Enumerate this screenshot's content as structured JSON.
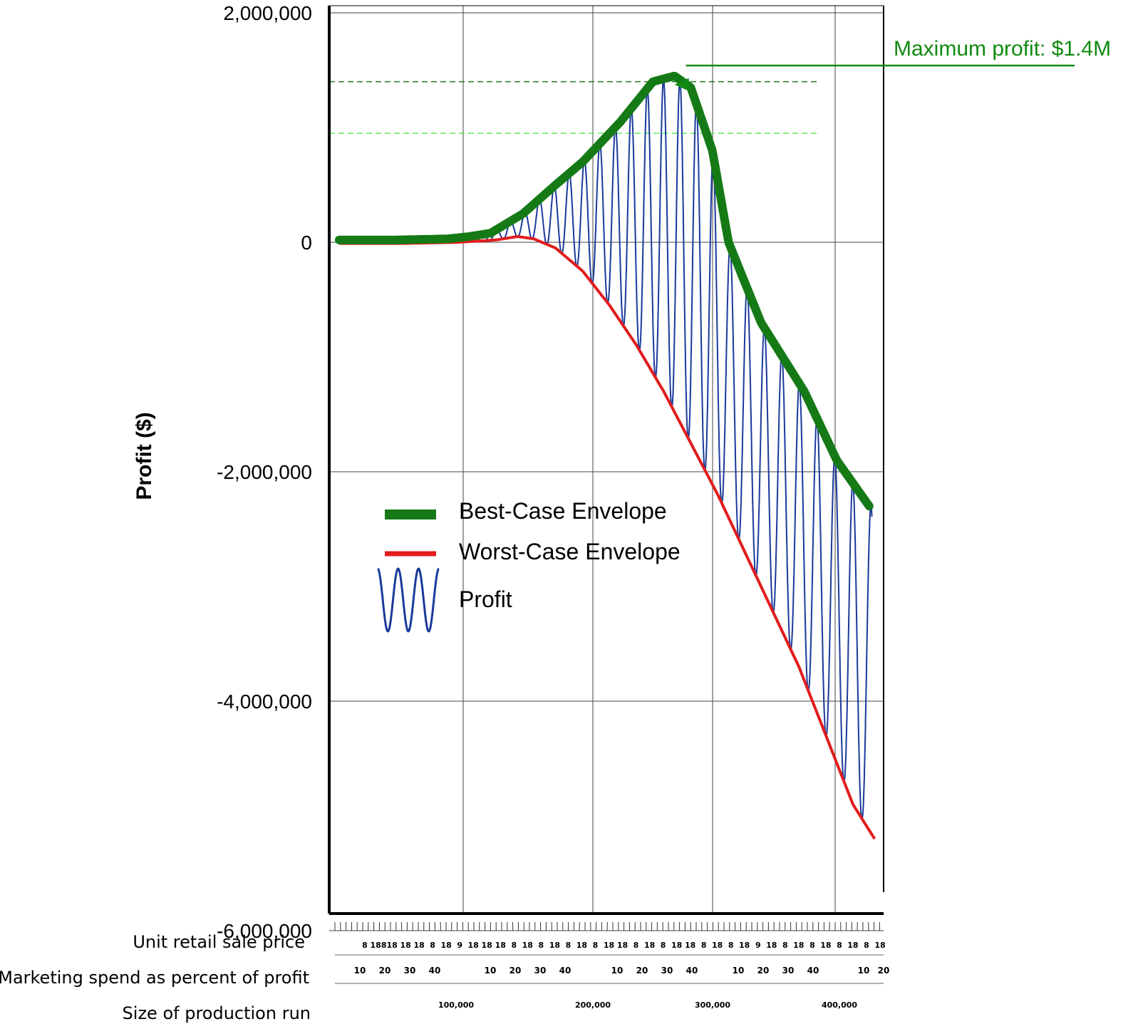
{
  "chart_data": {
    "type": "line",
    "title": "",
    "ylabel": "Profit ($)",
    "ylim": [
      -6200000,
      2000000
    ],
    "yticks": [
      2000000,
      0,
      -2000000,
      -4000000,
      -6000000
    ],
    "ytick_labels": [
      "2,000,000",
      "0",
      "-2,000,000",
      "-4,000,000",
      "-6,000,000"
    ],
    "x_rows": [
      {
        "label": "Unit retail sale price",
        "tick_labels": [
          "8",
          "188",
          "18",
          "18",
          "18",
          "8",
          "18",
          "9",
          "18",
          "18",
          "18",
          "8",
          "18",
          "8",
          "18",
          "8",
          "18",
          "8",
          "18",
          "18",
          "8",
          "18",
          "8",
          "18",
          "18",
          "8",
          "18",
          "8",
          "18",
          "9",
          "18",
          "8",
          "18",
          "8",
          "18",
          "8",
          "18",
          "8",
          "18"
        ]
      },
      {
        "label": "Marketing spend as percent of profit",
        "tick_labels": [
          "10",
          "20",
          "30",
          "40",
          "10",
          "20",
          "30",
          "40",
          "10",
          "20",
          "30",
          "40",
          "10",
          "20",
          "30",
          "40",
          "10",
          "20"
        ]
      },
      {
        "label": "Size of production run",
        "tick_labels": [
          "100,000",
          "200,000",
          "300,000",
          "400,000"
        ]
      }
    ],
    "series": [
      {
        "name": "Best-Case Envelope",
        "color": "#157a15",
        "x": [
          0.0,
          0.1,
          0.2,
          0.24,
          0.28,
          0.34,
          0.4,
          0.45,
          0.52,
          0.58,
          0.62,
          0.65,
          0.69,
          0.72,
          0.78,
          0.86,
          0.92,
          0.98
        ],
        "y": [
          20000,
          20000,
          30000,
          50000,
          80000,
          250000,
          500000,
          700000,
          1050000,
          1400000,
          1450000,
          1350000,
          800000,
          0,
          -700000,
          -1300000,
          -1900000,
          -2300000
        ]
      },
      {
        "name": "Worst-Case Envelope",
        "color": "#e11d1d",
        "x": [
          0.0,
          0.12,
          0.22,
          0.29,
          0.33,
          0.36,
          0.4,
          0.45,
          0.5,
          0.55,
          0.6,
          0.65,
          0.7,
          0.75,
          0.8,
          0.85,
          0.9,
          0.95,
          0.99
        ],
        "y": [
          -10000,
          -10000,
          0,
          20000,
          50000,
          30000,
          -50000,
          -250000,
          -550000,
          -900000,
          -1300000,
          -1750000,
          -2200000,
          -2700000,
          -3200000,
          -3700000,
          -4300000,
          -4900000,
          -5200000
        ]
      },
      {
        "name": "Profit",
        "color": "#1a3a9a",
        "oscillates_between": [
          "Worst-Case Envelope",
          "Best-Case Envelope"
        ],
        "cycles": 38
      }
    ],
    "legend": {
      "placement": "center-left"
    },
    "annotations": [
      {
        "text": "Maximum profit: $1.4M",
        "x": 0.62,
        "y": 1400000
      }
    ],
    "reference_lines": [
      {
        "y": 1400000,
        "color": "#1f7a1f",
        "style": "dashed"
      },
      {
        "y": 950000,
        "color": "#5ce85c",
        "style": "dashed"
      }
    ],
    "grid": true
  }
}
